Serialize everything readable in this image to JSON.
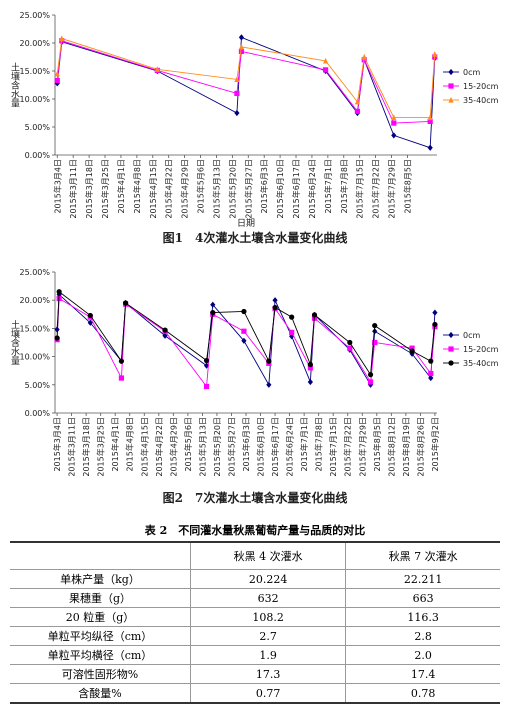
{
  "chart_data": [
    {
      "type": "line",
      "title": "图1　4次灌水土壤含水量变化曲线",
      "y_label": "土壤含水量",
      "x_label": "日期",
      "x": [
        63,
        65,
        107,
        142,
        144,
        181,
        195,
        198,
        211,
        227,
        229
      ],
      "xlim": [
        62,
        230
      ],
      "xticks": [
        {
          "value": 63,
          "label": "2015年3月4日"
        },
        {
          "value": 70,
          "label": "2015年3月11日"
        },
        {
          "value": 77,
          "label": "2015年3月18日"
        },
        {
          "value": 84,
          "label": "2015年3月25日"
        },
        {
          "value": 91,
          "label": "2015年4月1日"
        },
        {
          "value": 98,
          "label": "2015年4月8日"
        },
        {
          "value": 105,
          "label": "2015年4月15日"
        },
        {
          "value": 112,
          "label": "2015年4月22日"
        },
        {
          "value": 119,
          "label": "2015年4月29日"
        },
        {
          "value": 126,
          "label": "2015年5月6日"
        },
        {
          "value": 133,
          "label": "2015年5月13日"
        },
        {
          "value": 140,
          "label": "2015年5月20日"
        },
        {
          "value": 147,
          "label": "2015年5月27日"
        },
        {
          "value": 154,
          "label": "2015年6月3日"
        },
        {
          "value": 161,
          "label": "2015年6月10日"
        },
        {
          "value": 168,
          "label": "2015年6月17日"
        },
        {
          "value": 175,
          "label": "2015年6月24日"
        },
        {
          "value": 182,
          "label": "2015年7月1日"
        },
        {
          "value": 189,
          "label": "2015年7月8日"
        },
        {
          "value": 196,
          "label": "2015年7月15日"
        },
        {
          "value": 203,
          "label": "2015年7月22日"
        },
        {
          "value": 210,
          "label": "2015年7月29日"
        },
        {
          "value": 217,
          "label": "2015年8月5日"
        }
      ],
      "ylim": [
        0,
        25
      ],
      "yticks": [
        {
          "value": 0,
          "label": "0.00%"
        },
        {
          "value": 5,
          "label": "5.00%"
        },
        {
          "value": 10,
          "label": "10.00%"
        },
        {
          "value": 15,
          "label": "15.00%"
        },
        {
          "value": 20,
          "label": "20.00%"
        },
        {
          "value": 25,
          "label": "25.00%"
        }
      ],
      "grid": false,
      "legend": "right",
      "series": [
        {
          "name": "0cm",
          "color": "#000080",
          "marker": "diamond",
          "values": [
            12.8,
            20.2,
            15.0,
            7.5,
            21.0,
            15.0,
            7.5,
            17.0,
            3.5,
            1.3,
            17.3
          ]
        },
        {
          "name": "15-20cm",
          "color": "#ff00ff",
          "marker": "square",
          "values": [
            13.3,
            20.4,
            15.1,
            11.0,
            18.5,
            15.2,
            7.8,
            17.0,
            5.7,
            6.0,
            17.5
          ]
        },
        {
          "name": "35-40cm",
          "color": "#ff8c1a",
          "marker": "triangle",
          "values": [
            14.5,
            20.8,
            15.3,
            13.5,
            19.3,
            16.8,
            9.5,
            17.5,
            6.7,
            6.7,
            18.0
          ]
        }
      ]
    },
    {
      "type": "line",
      "title": "图2　7次灌水土壤含水量变化曲线",
      "y_label": "土壤含水量",
      "x": [
        63,
        64,
        79,
        94,
        96,
        115,
        135,
        138,
        153,
        165,
        168,
        176,
        185,
        187,
        204,
        214,
        216,
        234,
        243,
        245
      ],
      "xlim": [
        62,
        246
      ],
      "xticks": [
        {
          "value": 63,
          "label": "2015年3月4日"
        },
        {
          "value": 70,
          "label": "2015年3月11日"
        },
        {
          "value": 77,
          "label": "2015年3月18日"
        },
        {
          "value": 84,
          "label": "2015年3月25日"
        },
        {
          "value": 91,
          "label": "2015年4月1日"
        },
        {
          "value": 98,
          "label": "2015年4月8日"
        },
        {
          "value": 105,
          "label": "2015年4月15日"
        },
        {
          "value": 112,
          "label": "2015年4月22日"
        },
        {
          "value": 119,
          "label": "2015年4月29日"
        },
        {
          "value": 126,
          "label": "2015年5月6日"
        },
        {
          "value": 133,
          "label": "2015年5月13日"
        },
        {
          "value": 140,
          "label": "2015年5月20日"
        },
        {
          "value": 147,
          "label": "2015年5月27日"
        },
        {
          "value": 154,
          "label": "2015年6月3日"
        },
        {
          "value": 161,
          "label": "2015年6月10日"
        },
        {
          "value": 168,
          "label": "2015年6月17日"
        },
        {
          "value": 175,
          "label": "2015年6月24日"
        },
        {
          "value": 182,
          "label": "2015年7月1日"
        },
        {
          "value": 189,
          "label": "2015年7月8日"
        },
        {
          "value": 196,
          "label": "2015年7月15日"
        },
        {
          "value": 203,
          "label": "2015年7月22日"
        },
        {
          "value": 210,
          "label": "2015年7月29日"
        },
        {
          "value": 217,
          "label": "2015年8月5日"
        },
        {
          "value": 224,
          "label": "2015年8月12日"
        },
        {
          "value": 231,
          "label": "2015年8月19日"
        },
        {
          "value": 238,
          "label": "2015年8月26日"
        },
        {
          "value": 245,
          "label": "2015年9月2日"
        }
      ],
      "ylim": [
        0,
        25
      ],
      "yticks": [
        {
          "value": 0,
          "label": "0.00%"
        },
        {
          "value": 5,
          "label": "5.00%"
        },
        {
          "value": 10,
          "label": "10.00%"
        },
        {
          "value": 15,
          "label": "15.00%"
        },
        {
          "value": 20,
          "label": "20.00%"
        },
        {
          "value": 25,
          "label": "25.00%"
        }
      ],
      "grid": false,
      "legend": "right",
      "series": [
        {
          "name": "0cm",
          "color": "#000080",
          "marker": "diamond",
          "values": [
            14.8,
            21.0,
            16.0,
            9.2,
            19.5,
            13.7,
            8.4,
            19.2,
            12.8,
            5.0,
            20.0,
            13.6,
            5.5,
            17.4,
            11.2,
            5.0,
            14.5,
            10.5,
            6.2,
            17.8
          ]
        },
        {
          "name": "15-20cm",
          "color": "#ff00ff",
          "marker": "square",
          "values": [
            13.0,
            20.3,
            17.0,
            6.2,
            19.3,
            14.5,
            4.7,
            17.5,
            14.5,
            8.8,
            18.5,
            14.3,
            8.0,
            16.8,
            11.5,
            5.5,
            12.5,
            11.5,
            7.0,
            15.3
          ]
        },
        {
          "name": "35-40cm",
          "color": "#000000",
          "marker": "circle",
          "values": [
            13.3,
            21.5,
            17.3,
            9.2,
            19.5,
            14.7,
            9.3,
            17.8,
            18.0,
            9.2,
            18.7,
            17.0,
            8.6,
            17.4,
            12.5,
            6.8,
            15.5,
            11.0,
            9.2,
            15.7
          ]
        }
      ]
    }
  ],
  "table": {
    "title": "表 2　不同灌水量秋黑葡萄产量与品质的对比",
    "header": [
      "秋黑 4 次灌水",
      "秋黑 7 次灌水"
    ],
    "rows": [
      [
        "单株产量（kg）",
        "20.224",
        "22.211"
      ],
      [
        "果穗重（g）",
        "632",
        "663"
      ],
      [
        "20 粒重（g）",
        "108.2",
        "116.3"
      ],
      [
        "单粒平均纵径（cm）",
        "2.7",
        "2.8"
      ],
      [
        "单粒平均横径（cm）",
        "1.9",
        "2.0"
      ],
      [
        "可溶性固形物%",
        "17.3",
        "17.4"
      ],
      [
        "含酸量%",
        "0.77",
        "0.78"
      ]
    ]
  }
}
